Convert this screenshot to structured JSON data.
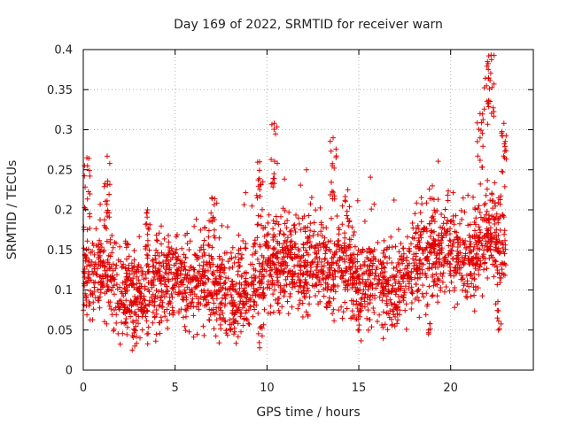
{
  "colors": {
    "series": "#e00000",
    "grid": "#b4b4b4",
    "axis": "#000000"
  },
  "chart_data": {
    "type": "scatter",
    "title": "Day 169 of 2022, SRMTID for receiver warn",
    "xlabel": "GPS time / hours",
    "ylabel": "SRMTID / TECUs",
    "xlim": [
      0,
      24.5
    ],
    "ylim": [
      0,
      0.4
    ],
    "xticks": [
      0,
      5,
      10,
      15,
      20
    ],
    "xtick_labels": [
      "0",
      "5",
      "10",
      "15",
      "20"
    ],
    "yticks": [
      0,
      0.05,
      0.1,
      0.15,
      0.2,
      0.25,
      0.3,
      0.35,
      0.4
    ],
    "ytick_labels": [
      "0",
      "0.05",
      "0.1",
      "0.15",
      "0.2",
      "0.25",
      "0.3",
      "0.35",
      "0.4"
    ],
    "grid": true,
    "marker": "+",
    "series": [
      {
        "name": "warn",
        "envelope_note": "approximate local centre value per hour (h = 0..23) from which the dense point cloud is drawn",
        "hourly_center": [
          0.115,
          0.125,
          0.095,
          0.09,
          0.11,
          0.115,
          0.105,
          0.11,
          0.095,
          0.105,
          0.12,
          0.14,
          0.125,
          0.13,
          0.13,
          0.105,
          0.115,
          0.095,
          0.13,
          0.145,
          0.15,
          0.135,
          0.165,
          0.15
        ],
        "peaks": [
          {
            "x": 0.2,
            "y": 0.265
          },
          {
            "x": 1.3,
            "y": 0.267
          },
          {
            "x": 3.5,
            "y": 0.2
          },
          {
            "x": 7.0,
            "y": 0.215
          },
          {
            "x": 9.6,
            "y": 0.26
          },
          {
            "x": 10.4,
            "y": 0.308
          },
          {
            "x": 13.6,
            "y": 0.29
          },
          {
            "x": 14.4,
            "y": 0.225
          },
          {
            "x": 19.0,
            "y": 0.23
          },
          {
            "x": 21.6,
            "y": 0.32
          },
          {
            "x": 22.0,
            "y": 0.385
          },
          {
            "x": 22.2,
            "y": 0.393
          },
          {
            "x": 22.9,
            "y": 0.308
          }
        ],
        "lows": [
          {
            "x": 2.8,
            "y": 0.03
          },
          {
            "x": 9.6,
            "y": 0.028
          },
          {
            "x": 8.2,
            "y": 0.045
          },
          {
            "x": 15.0,
            "y": 0.05
          },
          {
            "x": 18.8,
            "y": 0.045
          },
          {
            "x": 22.6,
            "y": 0.05
          }
        ],
        "x_range": [
          0.0,
          23.0
        ],
        "point_count": 2600
      }
    ]
  }
}
